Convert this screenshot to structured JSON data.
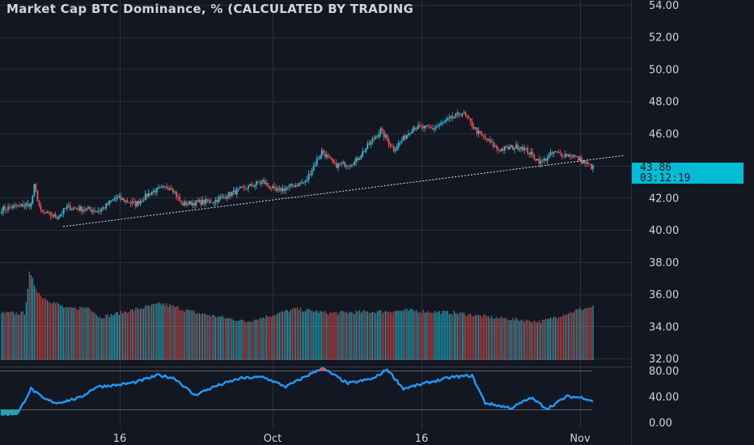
{
  "chart_data": {
    "type": "candlestick",
    "title": "Market Cap BTC Dominance, % (CALCULATED BY TRADING",
    "price_axis": {
      "ticks": [
        "54.00",
        "52.00",
        "50.00",
        "48.00",
        "46.00",
        "42.00",
        "40.00",
        "38.00",
        "36.00",
        "34.00",
        "32.00"
      ],
      "tick_values": [
        54,
        52,
        50,
        48,
        46,
        42,
        40,
        38,
        36,
        34,
        32
      ],
      "range": [
        32,
        54.2
      ]
    },
    "last_price": "43.86",
    "countdown": "03:12:19",
    "time_axis": {
      "labels": [
        "16",
        "Oct",
        "16",
        "Nov"
      ]
    },
    "price_keypoints": [
      {
        "i": 0,
        "v": 41.3
      },
      {
        "i": 18,
        "v": 41.6
      },
      {
        "i": 20,
        "v": 42.7
      },
      {
        "i": 24,
        "v": 41.1
      },
      {
        "i": 34,
        "v": 40.8
      },
      {
        "i": 40,
        "v": 41.4
      },
      {
        "i": 60,
        "v": 41.2
      },
      {
        "i": 70,
        "v": 42.0
      },
      {
        "i": 82,
        "v": 41.6
      },
      {
        "i": 92,
        "v": 42.4
      },
      {
        "i": 104,
        "v": 42.7
      },
      {
        "i": 110,
        "v": 41.6
      },
      {
        "i": 130,
        "v": 41.8
      },
      {
        "i": 146,
        "v": 42.5
      },
      {
        "i": 160,
        "v": 43.0
      },
      {
        "i": 168,
        "v": 42.4
      },
      {
        "i": 186,
        "v": 43.0
      },
      {
        "i": 196,
        "v": 44.9
      },
      {
        "i": 204,
        "v": 44.0
      },
      {
        "i": 216,
        "v": 44.2
      },
      {
        "i": 232,
        "v": 46.2
      },
      {
        "i": 240,
        "v": 45.0
      },
      {
        "i": 252,
        "v": 46.4
      },
      {
        "i": 264,
        "v": 46.3
      },
      {
        "i": 282,
        "v": 47.3
      },
      {
        "i": 292,
        "v": 46.0
      },
      {
        "i": 304,
        "v": 45.0
      },
      {
        "i": 318,
        "v": 45.2
      },
      {
        "i": 330,
        "v": 44.2
      },
      {
        "i": 338,
        "v": 44.8
      },
      {
        "i": 350,
        "v": 44.6
      },
      {
        "i": 362,
        "v": 43.86
      }
    ],
    "volume_keypoints": [
      {
        "i": 0,
        "v": 0.55
      },
      {
        "i": 14,
        "v": 0.55
      },
      {
        "i": 17,
        "v": 1.0
      },
      {
        "i": 24,
        "v": 0.75
      },
      {
        "i": 40,
        "v": 0.6
      },
      {
        "i": 54,
        "v": 0.62
      },
      {
        "i": 60,
        "v": 0.5
      },
      {
        "i": 98,
        "v": 0.66
      },
      {
        "i": 120,
        "v": 0.55
      },
      {
        "i": 150,
        "v": 0.45
      },
      {
        "i": 180,
        "v": 0.6
      },
      {
        "i": 200,
        "v": 0.55
      },
      {
        "i": 250,
        "v": 0.58
      },
      {
        "i": 280,
        "v": 0.55
      },
      {
        "i": 300,
        "v": 0.5
      },
      {
        "i": 330,
        "v": 0.45
      },
      {
        "i": 355,
        "v": 0.6
      },
      {
        "i": 362,
        "v": 0.62
      }
    ],
    "rsi_axis": {
      "ticks": [
        "80.00",
        "40.00",
        "0.00"
      ],
      "tick_values": [
        80,
        40,
        0
      ],
      "range": [
        0,
        84
      ]
    },
    "rsi_keypoints": [
      {
        "i": 0,
        "v": 12
      },
      {
        "i": 10,
        "v": 14
      },
      {
        "i": 18,
        "v": 52
      },
      {
        "i": 26,
        "v": 36
      },
      {
        "i": 34,
        "v": 30
      },
      {
        "i": 48,
        "v": 38
      },
      {
        "i": 58,
        "v": 55
      },
      {
        "i": 72,
        "v": 58
      },
      {
        "i": 82,
        "v": 62
      },
      {
        "i": 96,
        "v": 73
      },
      {
        "i": 106,
        "v": 68
      },
      {
        "i": 118,
        "v": 42
      },
      {
        "i": 130,
        "v": 55
      },
      {
        "i": 146,
        "v": 68
      },
      {
        "i": 160,
        "v": 70
      },
      {
        "i": 174,
        "v": 55
      },
      {
        "i": 196,
        "v": 84
      },
      {
        "i": 212,
        "v": 60
      },
      {
        "i": 228,
        "v": 68
      },
      {
        "i": 236,
        "v": 82
      },
      {
        "i": 246,
        "v": 52
      },
      {
        "i": 262,
        "v": 62
      },
      {
        "i": 276,
        "v": 70
      },
      {
        "i": 288,
        "v": 72
      },
      {
        "i": 296,
        "v": 30
      },
      {
        "i": 312,
        "v": 22
      },
      {
        "i": 324,
        "v": 38
      },
      {
        "i": 334,
        "v": 21
      },
      {
        "i": 346,
        "v": 40
      },
      {
        "i": 356,
        "v": 38
      },
      {
        "i": 362,
        "v": 33
      }
    ],
    "rsi_band": [
      20,
      80
    ],
    "colors": {
      "background": "#131722",
      "up": "#26c6da",
      "down": "#ef5350",
      "rsi_line": "#2196f3",
      "rsi_overbought": "#ef5350",
      "rsi_oversold": "#26a69a",
      "price_badge": "#00bcd4",
      "grid": "#2a2e39",
      "text": "#d1d4dc"
    }
  }
}
